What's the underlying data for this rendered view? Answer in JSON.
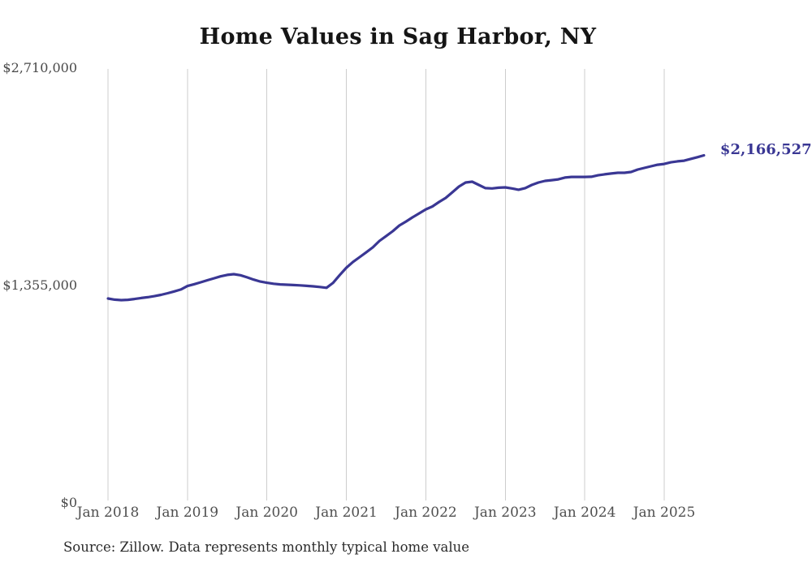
{
  "page": {
    "title": "Home Values in Sag Harbor, NY",
    "source_note": "Source: Zillow. Data represents monthly typical home value"
  },
  "chart_data": {
    "type": "line",
    "title": "Home Values in Sag Harbor, NY",
    "xlabel": "",
    "ylabel": "",
    "x_tick_labels": [
      "Jan 2018",
      "Jan 2019",
      "Jan 2020",
      "Jan 2021",
      "Jan 2022",
      "Jan 2023",
      "Jan 2024",
      "Jan 2025"
    ],
    "y_ticks": [
      {
        "value": 0,
        "label": "$0"
      },
      {
        "value": 1355000,
        "label": "$1,355,000"
      },
      {
        "value": 2710000,
        "label": "$2,710,000"
      }
    ],
    "ylim": [
      0,
      2710000
    ],
    "x_range": {
      "start": "Jan 2018",
      "end": "Jul 2025",
      "interval": "monthly"
    },
    "grid": "vertical",
    "legend": "none",
    "line_color": "#3a3794",
    "gridline_color": "#cdcdcd",
    "end_label": "$2,166,527",
    "end_value": 2166527,
    "series": [
      {
        "name": "Typical home value",
        "values": [
          1274000,
          1267000,
          1264000,
          1266000,
          1271000,
          1277000,
          1282000,
          1289000,
          1297000,
          1307000,
          1318000,
          1330000,
          1352000,
          1363000,
          1375000,
          1388000,
          1400000,
          1412000,
          1421000,
          1426000,
          1419000,
          1406000,
          1392000,
          1380000,
          1372000,
          1366000,
          1362000,
          1360000,
          1358000,
          1356000,
          1353000,
          1350000,
          1346000,
          1341000,
          1372000,
          1420000,
          1466000,
          1502000,
          1532000,
          1562000,
          1593000,
          1633000,
          1663000,
          1694000,
          1729000,
          1754000,
          1780000,
          1805000,
          1830000,
          1848000,
          1876000,
          1901000,
          1936000,
          1972000,
          1997000,
          2002000,
          1982000,
          1962000,
          1960000,
          1965000,
          1967000,
          1960000,
          1952000,
          1962000,
          1982000,
          1997000,
          2007000,
          2012000,
          2017000,
          2028000,
          2032000,
          2032000,
          2032000,
          2033000,
          2042000,
          2048000,
          2053000,
          2058000,
          2058000,
          2063000,
          2078000,
          2088000,
          2098000,
          2108000,
          2113000,
          2123000,
          2129000,
          2133000,
          2144000,
          2155000,
          2166527
        ]
      }
    ]
  }
}
